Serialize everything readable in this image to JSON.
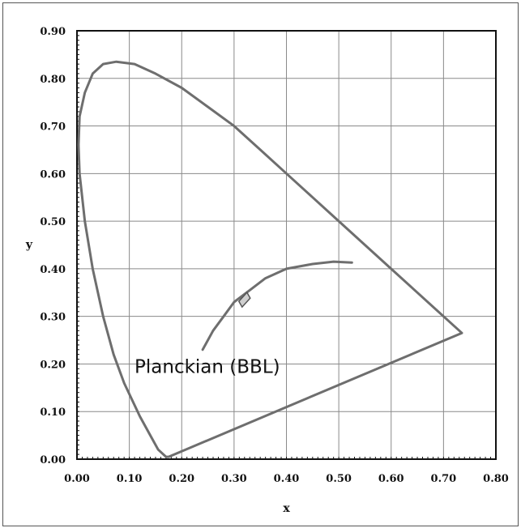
{
  "chart_data": {
    "type": "line",
    "title": "",
    "xlabel": "x",
    "ylabel": "y",
    "xlim": [
      0.0,
      0.8
    ],
    "ylim": [
      0.0,
      0.9
    ],
    "grid": true,
    "x_ticks": [
      "0.00",
      "0.10",
      "0.20",
      "0.30",
      "0.40",
      "0.50",
      "0.60",
      "0.70",
      "0.80"
    ],
    "y_ticks": [
      "0.00",
      "0.10",
      "0.20",
      "0.30",
      "0.40",
      "0.50",
      "0.60",
      "0.70",
      "0.80",
      "0.90"
    ],
    "annotations": [
      {
        "text": "Planckian (BBL)",
        "x": 0.26,
        "y": 0.19
      }
    ],
    "series": [
      {
        "role": "spectral-locus",
        "color": "#6e6e6e",
        "points": [
          [
            0.175,
            0.005
          ],
          [
            0.17,
            0.005
          ],
          [
            0.155,
            0.02
          ],
          [
            0.14,
            0.05
          ],
          [
            0.12,
            0.09
          ],
          [
            0.09,
            0.16
          ],
          [
            0.07,
            0.22
          ],
          [
            0.05,
            0.3
          ],
          [
            0.03,
            0.4
          ],
          [
            0.015,
            0.5
          ],
          [
            0.005,
            0.6
          ],
          [
            0.003,
            0.66
          ],
          [
            0.005,
            0.72
          ],
          [
            0.015,
            0.77
          ],
          [
            0.03,
            0.81
          ],
          [
            0.05,
            0.83
          ],
          [
            0.075,
            0.835
          ],
          [
            0.11,
            0.83
          ],
          [
            0.15,
            0.81
          ],
          [
            0.2,
            0.78
          ],
          [
            0.25,
            0.74
          ],
          [
            0.3,
            0.7
          ],
          [
            0.35,
            0.65
          ],
          [
            0.4,
            0.6
          ],
          [
            0.45,
            0.55
          ],
          [
            0.5,
            0.5
          ],
          [
            0.55,
            0.45
          ],
          [
            0.6,
            0.4
          ],
          [
            0.65,
            0.35
          ],
          [
            0.7,
            0.3
          ],
          [
            0.735,
            0.265
          ],
          [
            0.175,
            0.005
          ]
        ]
      },
      {
        "role": "planckian-locus",
        "color": "#6e6e6e",
        "points": [
          [
            0.24,
            0.23
          ],
          [
            0.26,
            0.27
          ],
          [
            0.28,
            0.3
          ],
          [
            0.3,
            0.33
          ],
          [
            0.33,
            0.355
          ],
          [
            0.36,
            0.38
          ],
          [
            0.4,
            0.4
          ],
          [
            0.45,
            0.41
          ],
          [
            0.49,
            0.415
          ],
          [
            0.525,
            0.413
          ]
        ]
      }
    ],
    "markers": [
      {
        "shape": "diamond",
        "x": 0.32,
        "y": 0.335
      }
    ]
  }
}
